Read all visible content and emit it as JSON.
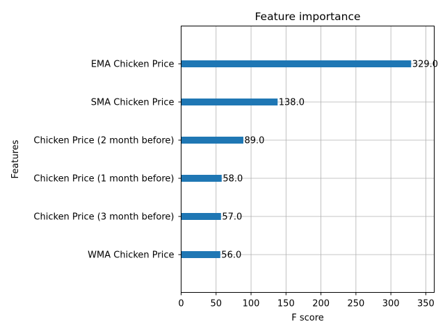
{
  "chart_data": {
    "type": "bar",
    "orientation": "horizontal",
    "title": "Feature importance",
    "xlabel": "F score",
    "ylabel": "Features",
    "categories": [
      "EMA Chicken Price",
      "SMA Chicken Price",
      "Chicken Price (2 month before)",
      "Chicken Price (1 month before)",
      "Chicken Price (3 month before)",
      "WMA Chicken Price"
    ],
    "values": [
      329.0,
      138.0,
      89.0,
      58.0,
      57.0,
      56.0
    ],
    "value_labels": [
      "329.0",
      "138.0",
      "89.0",
      "58.0",
      "57.0",
      "56.0"
    ],
    "xlim": [
      0,
      362
    ],
    "xticks": [
      0,
      50,
      100,
      150,
      200,
      250,
      300,
      350
    ],
    "grid": true,
    "bar_color": "#1f77b4"
  }
}
